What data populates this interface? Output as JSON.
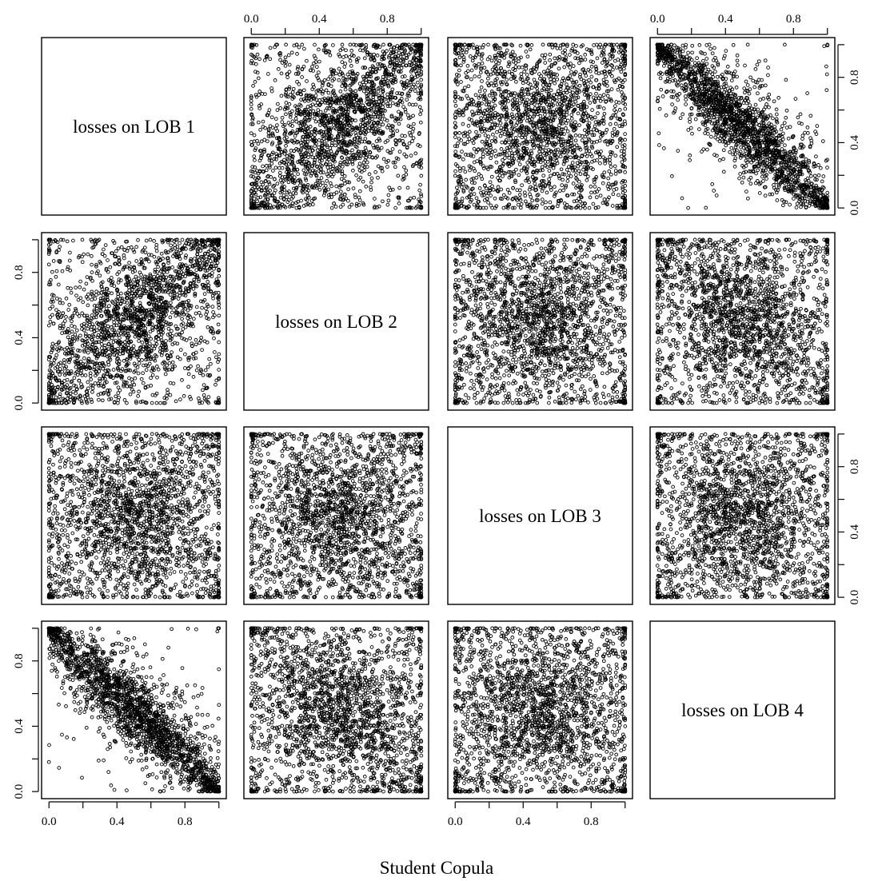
{
  "chart_data": {
    "type": "scatter",
    "layout": "pairs-matrix",
    "xlabel": "Student Copula",
    "variables": [
      "losses on LOB 1",
      "losses on LOB 2",
      "losses on LOB 3",
      "losses on LOB 4"
    ],
    "axis_range": [
      0,
      1
    ],
    "tick_labels": [
      "0.0",
      "0.4",
      "0.8"
    ],
    "tick_values": [
      0,
      0.2,
      0.4,
      0.6,
      0.8,
      1.0
    ],
    "labeled_tick_values": [
      0,
      0.4,
      0.8
    ],
    "point_count_per_panel": 2200,
    "copula_family": "t",
    "pairwise_correlation": {
      "1-2": 0.5,
      "1-3": 0.0,
      "1-4": -0.9,
      "2-3": 0.0,
      "2-4": -0.2,
      "3-4": 0.0
    },
    "grid": false,
    "legend": "none"
  }
}
